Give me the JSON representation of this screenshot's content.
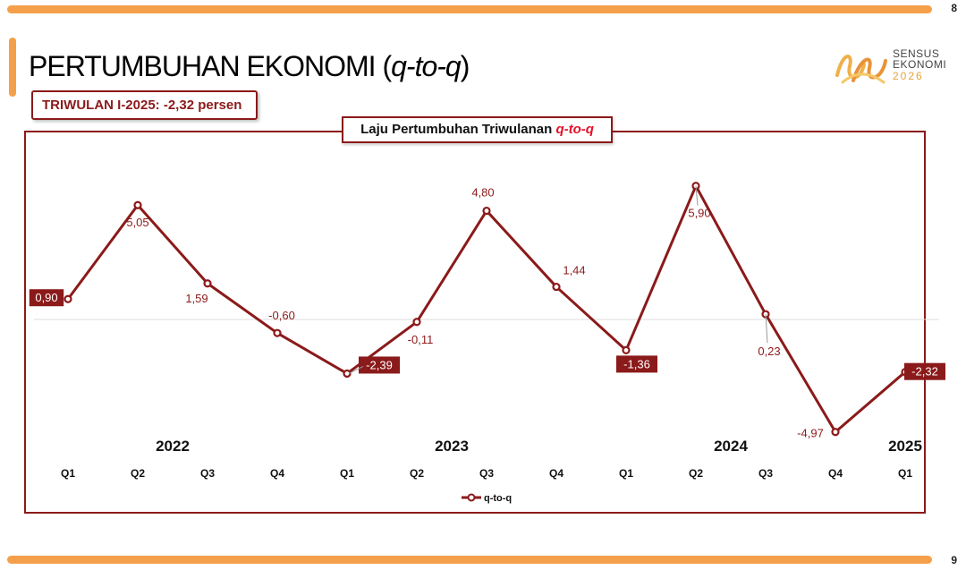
{
  "header": {
    "page_top": "8",
    "page_bottom": "9",
    "title_main": "PERTUMBUHAN EKONOMI (",
    "title_italic": "q-to-q",
    "title_end": ")",
    "badge": "TRIWULAN I-2025: -2,32 persen"
  },
  "logo": {
    "line1": "SENSUS",
    "line2": "EKONOMI",
    "line3": "2026"
  },
  "chart_title": {
    "prefix": "Laju Pertumbuhan Triwulanan ",
    "suffix": "q-to-q"
  },
  "colors": {
    "line": "#8b1a1a",
    "accent": "#f4a04a",
    "title_red": "#e3102a"
  },
  "chart_data": {
    "type": "line",
    "title": "Laju Pertumbuhan Triwulanan q-to-q",
    "categories": [
      "Q1",
      "Q2",
      "Q3",
      "Q4",
      "Q1",
      "Q2",
      "Q3",
      "Q4",
      "Q1",
      "Q2",
      "Q3",
      "Q4",
      "Q1"
    ],
    "years": [
      {
        "label": "2022",
        "start": 0,
        "end": 3
      },
      {
        "label": "2023",
        "start": 4,
        "end": 7
      },
      {
        "label": "2024",
        "start": 8,
        "end": 11
      },
      {
        "label": "2025",
        "start": 12,
        "end": 12
      }
    ],
    "series": [
      {
        "name": "q-to-q",
        "values": [
          0.9,
          5.05,
          1.59,
          -0.6,
          -2.39,
          -0.11,
          4.8,
          1.44,
          -1.36,
          5.9,
          0.23,
          -4.97,
          -2.32
        ],
        "labels": [
          "0,90",
          "5,05",
          "1,59",
          "-0,60",
          "-2,39",
          "-0,11",
          "4,80",
          "1,44",
          "-1,36",
          "5,90",
          "0,23",
          "-4,97",
          "-2,32"
        ],
        "highlighted": [
          0,
          4,
          8,
          12
        ]
      }
    ],
    "ylim": [
      -5.5,
      6.5
    ],
    "legend": "bottom-center",
    "xlabel": "",
    "ylabel": ""
  }
}
